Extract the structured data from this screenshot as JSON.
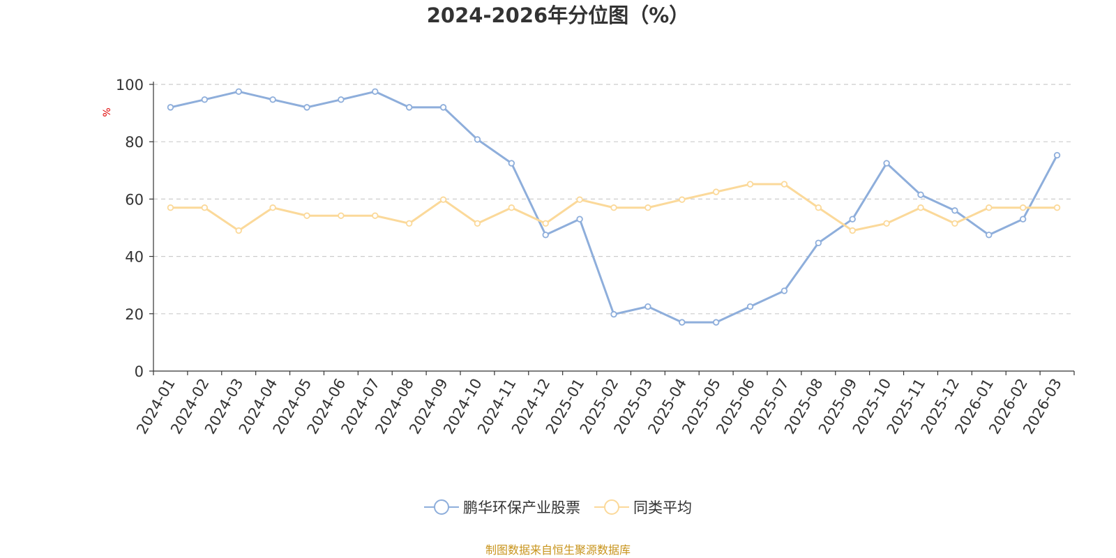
{
  "chart_data": {
    "type": "line",
    "title": "2024-2026年分位图（%）",
    "ylabel": "%",
    "xlabel": "",
    "ylim": [
      0,
      100
    ],
    "yticks": [
      0,
      20,
      40,
      60,
      80,
      100
    ],
    "grid": true,
    "legend_position": "bottom",
    "categories": [
      "2024-01",
      "2024-02",
      "2024-03",
      "2024-04",
      "2024-05",
      "2024-06",
      "2024-07",
      "2024-08",
      "2024-09",
      "2024-10",
      "2024-11",
      "2024-12",
      "2025-01",
      "2025-02",
      "2025-03",
      "2025-04",
      "2025-05",
      "2025-06",
      "2025-07",
      "2025-08",
      "2025-09",
      "2025-10",
      "2025-11",
      "2025-12",
      "2026-01",
      "2026-02",
      "2026-03"
    ],
    "series": [
      {
        "name": "鹏华环保产业股票",
        "color": "#8eaedb",
        "values": [
          92,
          94.7,
          97.5,
          94.7,
          92,
          94.7,
          97.5,
          92,
          92,
          80.8,
          72.5,
          47.5,
          53,
          19.8,
          22.5,
          17,
          17,
          22.5,
          28,
          44.7,
          53,
          72.5,
          61.5,
          56,
          47.5,
          53,
          75.3
        ]
      },
      {
        "name": "同类平均",
        "color": "#fbd99a",
        "values": [
          57,
          57,
          49,
          57,
          54.2,
          54.2,
          54.2,
          51.5,
          59.8,
          51.5,
          57,
          51.5,
          59.8,
          57,
          57,
          59.8,
          62.5,
          65.2,
          65.2,
          57,
          49,
          51.5,
          57,
          51.5,
          57,
          57,
          57
        ]
      }
    ]
  },
  "source_note": "制图数据来自恒生聚源数据库"
}
